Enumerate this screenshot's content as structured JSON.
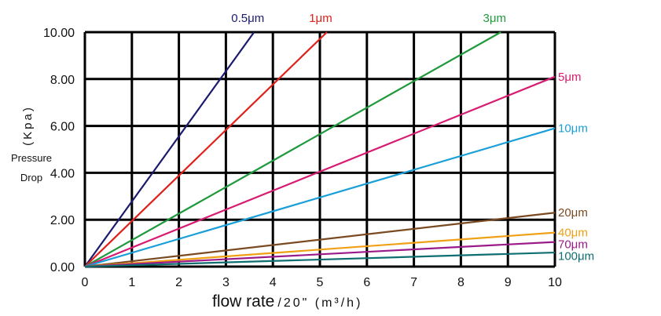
{
  "chart_data": {
    "type": "line",
    "xlabel": "flow rate",
    "xlabel_unit": "/20\" (m³/h)",
    "ylabel_unit": "(Kpa)",
    "ylabel_lines": [
      "Pressure",
      "Drop"
    ],
    "xlim": [
      0,
      10
    ],
    "ylim": [
      0,
      10
    ],
    "x_ticks": [
      "0",
      "1",
      "2",
      "3",
      "4",
      "5",
      "6",
      "7",
      "8",
      "9",
      "10"
    ],
    "y_ticks": [
      "0.00",
      "2.00",
      "4.00",
      "6.00",
      "8.00",
      "10.00"
    ],
    "y_tick_values": [
      0,
      2,
      4,
      6,
      8,
      10
    ],
    "grid": true,
    "series": [
      {
        "name": "0.5μm",
        "color": "#1a1a6e",
        "x": [
          0,
          3.6
        ],
        "y": [
          0,
          10
        ]
      },
      {
        "name": "1μm",
        "color": "#e0201a",
        "x": [
          0,
          5.15
        ],
        "y": [
          0,
          10
        ]
      },
      {
        "name": "3μm",
        "color": "#1e9a3c",
        "x": [
          0,
          8.85
        ],
        "y": [
          0,
          10
        ]
      },
      {
        "name": "5μm",
        "color": "#d81b72",
        "x": [
          0,
          10
        ],
        "y": [
          0,
          8.1
        ]
      },
      {
        "name": "10μm",
        "color": "#1a9fd8",
        "x": [
          0,
          10
        ],
        "y": [
          0,
          5.9
        ]
      },
      {
        "name": "20μm",
        "color": "#7a4a22",
        "x": [
          0,
          10
        ],
        "y": [
          0,
          2.3
        ]
      },
      {
        "name": "40μm",
        "color": "#f0a015",
        "x": [
          0,
          10
        ],
        "y": [
          0,
          1.45
        ]
      },
      {
        "name": "70μm",
        "color": "#9a1a8a",
        "x": [
          0,
          10
        ],
        "y": [
          0,
          1.05
        ]
      },
      {
        "name": "100μm",
        "color": "#0f6e70",
        "x": [
          0,
          10
        ],
        "y": [
          0,
          0.6
        ]
      }
    ]
  }
}
